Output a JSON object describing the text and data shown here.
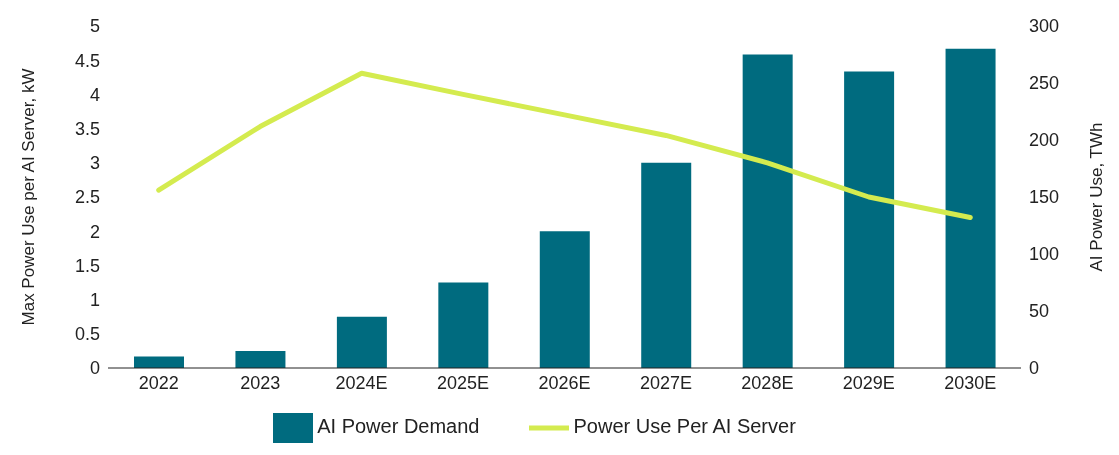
{
  "chart_data": {
    "type": "bar",
    "categories": [
      "2022",
      "2023",
      "2024E",
      "2025E",
      "2026E",
      "2027E",
      "2028E",
      "2029E",
      "2030E"
    ],
    "series": [
      {
        "name": "AI Power Demand",
        "axis": "y2",
        "color": "#006b7f",
        "values": [
          10,
          15,
          45,
          75,
          120,
          180,
          275,
          260,
          280
        ]
      },
      {
        "name": "Power Use Per AI Server",
        "type": "line",
        "axis": "y",
        "color": "#d4eb4f",
        "values": [
          2.6,
          3.53,
          4.31,
          4.0,
          3.7,
          3.4,
          3.0,
          2.5,
          2.2
        ]
      }
    ],
    "ylabel": "Max Power Use per AI Server, kW",
    "y2label": "AI Power Use, TWh",
    "ylim": [
      0,
      5
    ],
    "yticks": [
      0,
      0.5,
      1,
      1.5,
      2,
      2.5,
      3,
      3.5,
      4,
      4.5,
      5
    ],
    "y2lim": [
      0,
      300
    ],
    "y2ticks": [
      0,
      50,
      100,
      150,
      200,
      250,
      300
    ],
    "grid": false,
    "legend": "bottom",
    "marker": "none",
    "line_style": "solid"
  }
}
